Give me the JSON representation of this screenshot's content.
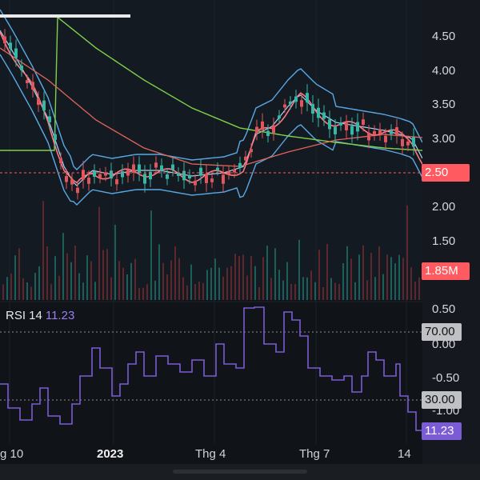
{
  "price_axis": {
    "ticks": [
      "4.50",
      "4.00",
      "3.50",
      "3.00",
      "2.50",
      "2.00",
      "1.50"
    ],
    "current_price": "2.50",
    "current_volume": "1.85M"
  },
  "rsi": {
    "label": "RSI 14",
    "value": "11.23",
    "ticks": [
      "0.50",
      "0.00",
      "-0.50",
      "-1.00"
    ],
    "upper_level": "70.00",
    "lower_level": "30.00"
  },
  "x_axis": {
    "labels": [
      "g 10",
      "2023",
      "Thg 4",
      "Thg 7",
      "14"
    ]
  },
  "colors": {
    "rsi": "#7b5cd6",
    "price_tag": "#ff5a5f",
    "bollinger": "#5aa9e6",
    "ma_long": "#7fd14a",
    "ma_mid": "#e0645a"
  }
}
